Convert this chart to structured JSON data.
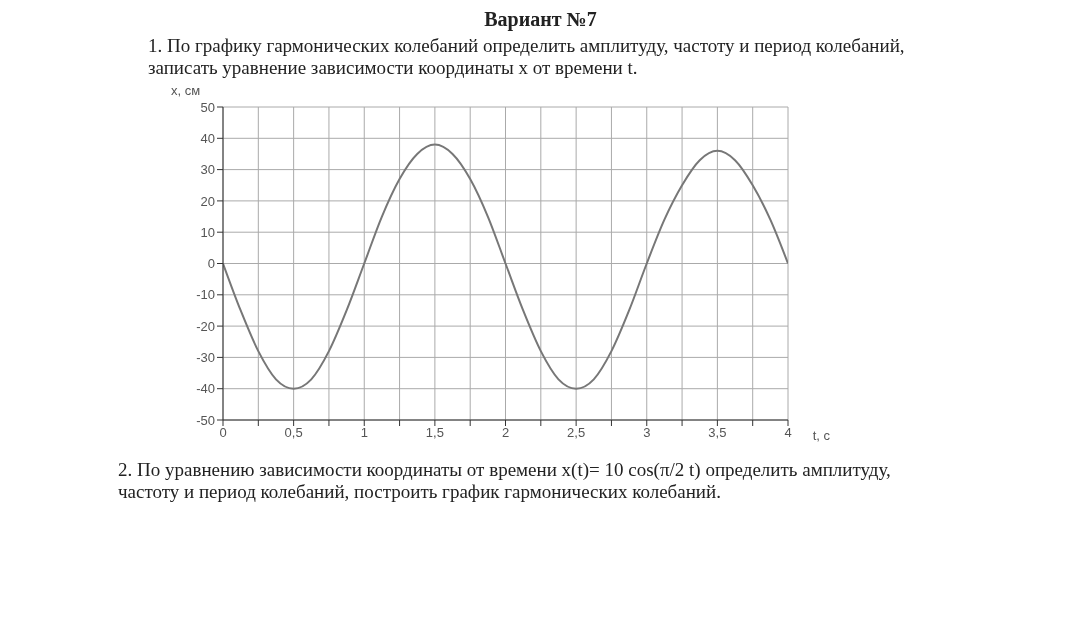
{
  "chart_data": {
    "type": "line",
    "title": "Вариант №7",
    "annotations": [
      "1. По графику гармонических колебаний определить амплитуду, частоту и период колебаний, записать уравнение зависимости координаты x от времени t.",
      "2. По уравнению зависимости координаты от времени x(t)= 10 cos(π/2 t) определить амплитуду, частоту и период колебаний, построить график гармонических колебаний."
    ],
    "xlabel": "t, c",
    "ylabel": "x, см",
    "x": [
      0,
      0.125,
      0.25,
      0.375,
      0.5,
      0.625,
      0.75,
      0.875,
      1,
      1.125,
      1.25,
      1.375,
      1.5,
      1.625,
      1.75,
      1.875,
      2,
      2.125,
      2.25,
      2.375,
      2.5,
      2.625,
      2.75,
      2.875,
      3,
      3.125,
      3.25,
      3.375,
      3.5,
      3.625,
      3.75,
      3.875,
      4
    ],
    "series": [
      {
        "color": "#777777",
        "values": [
          0,
          -15,
          -28,
          -37,
          -40,
          -37,
          -28,
          -15,
          0,
          15,
          27,
          35,
          38,
          35,
          27,
          15,
          0,
          -15,
          -28,
          -37,
          -40,
          -37,
          -28,
          -15,
          0,
          14,
          25,
          33,
          36,
          33,
          25,
          14,
          0
        ]
      }
    ],
    "xlim": [
      0,
      4
    ],
    "xticks": [
      0,
      {
        "value": 0.25,
        "label": null
      },
      {
        "value": 0.5,
        "label": "0,5"
      },
      {
        "value": 0.75,
        "label": null
      },
      1,
      {
        "value": 1.25,
        "label": null
      },
      {
        "value": 1.5,
        "label": "1,5"
      },
      {
        "value": 1.75,
        "label": null
      },
      2,
      {
        "value": 2.25,
        "label": null
      },
      {
        "value": 2.5,
        "label": "2,5"
      },
      {
        "value": 2.75,
        "label": null
      },
      3,
      {
        "value": 3.25,
        "label": null
      },
      {
        "value": 3.5,
        "label": "3,5"
      },
      {
        "value": 3.75,
        "label": null
      },
      4
    ],
    "ylim": [
      -50,
      50
    ],
    "yticks": [
      -50,
      -40,
      -30,
      -20,
      -10,
      0,
      10,
      20,
      30,
      40,
      50
    ],
    "grid": true
  }
}
